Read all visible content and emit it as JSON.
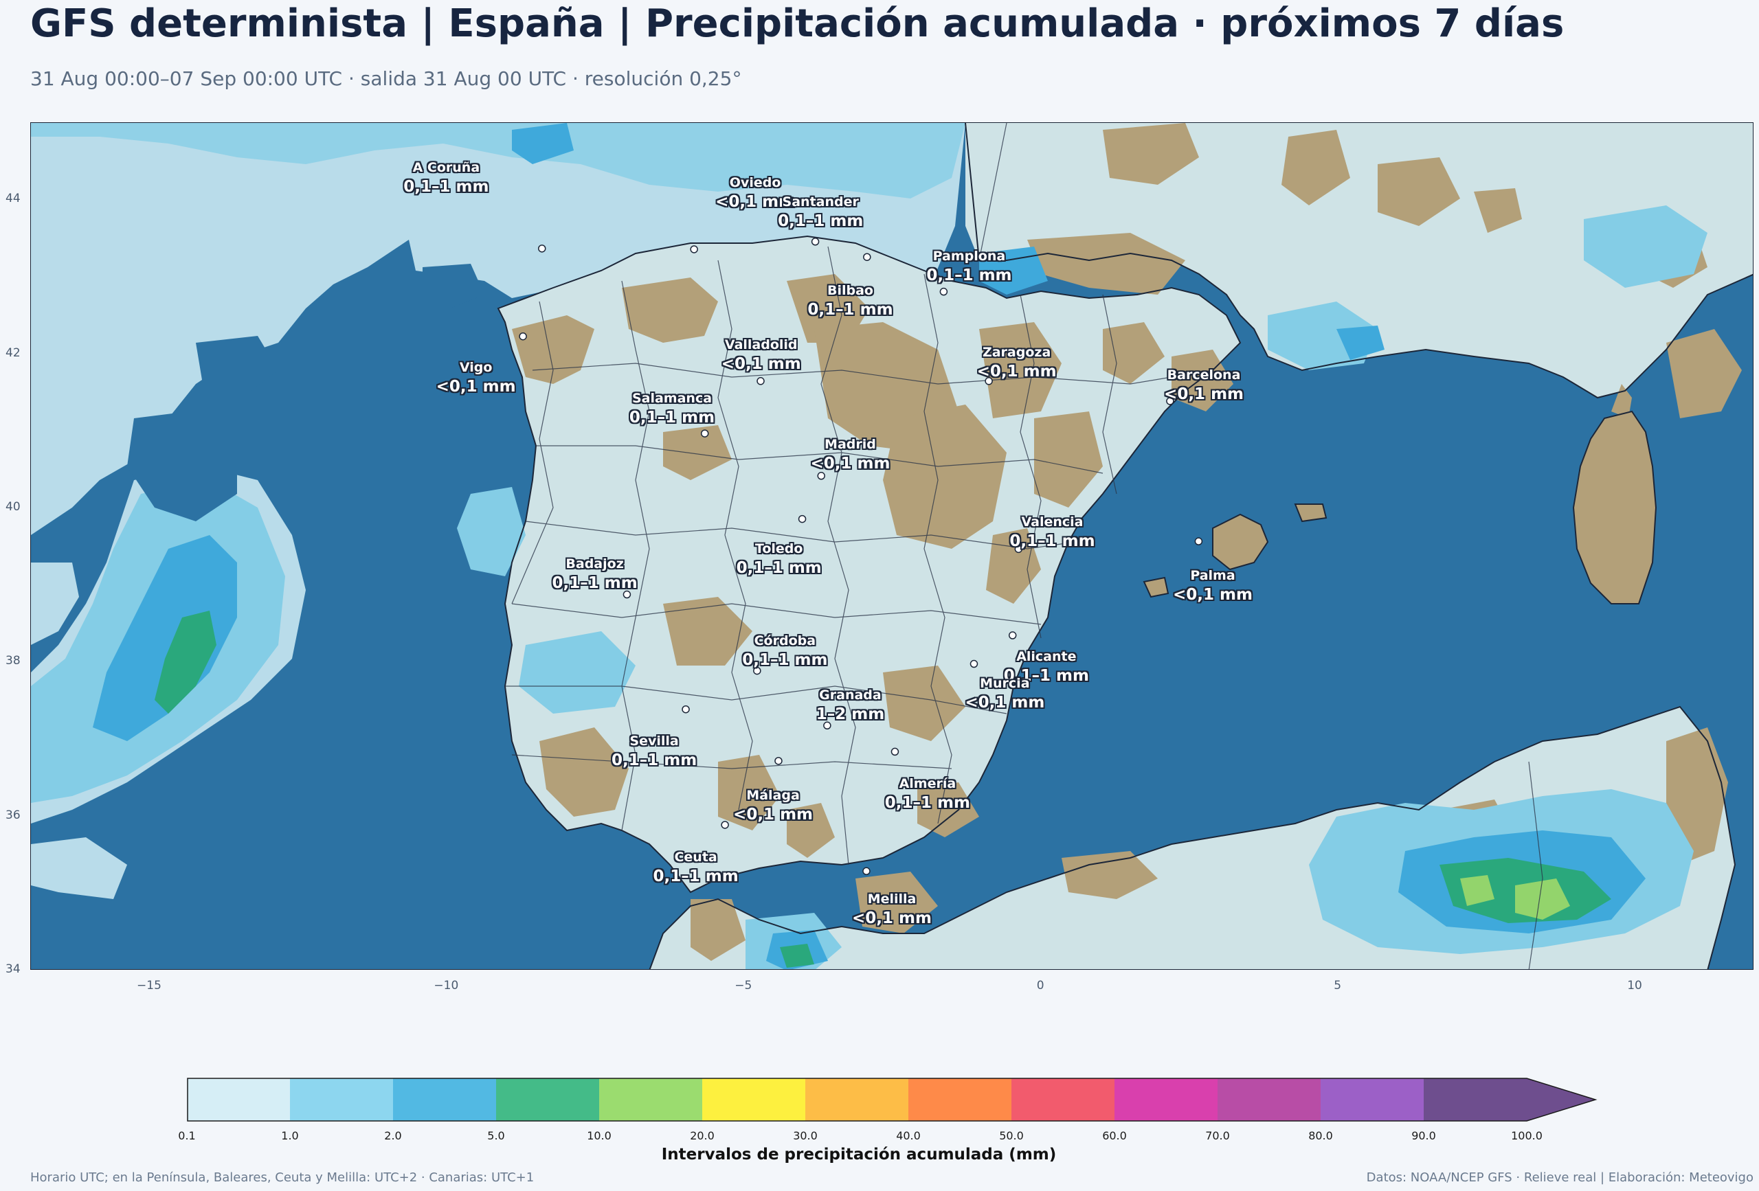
{
  "header": {
    "title": "GFS determinista | España | Precipitación acumulada · próximos 7 días",
    "subtitle": "31 Aug 00:00–07 Sep 00:00 UTC · salida 31 Aug 00 UTC · resolución 0,25°"
  },
  "map": {
    "lon_range": [
      -17,
      12
    ],
    "lat_range": [
      34,
      45
    ],
    "x_ticks": [
      -15,
      -10,
      -5,
      0,
      5,
      10
    ],
    "y_ticks": [
      34,
      36,
      38,
      40,
      42,
      44
    ],
    "x_tick_labels": [
      "−15",
      "−10",
      "−5",
      "0",
      "5",
      "10"
    ],
    "y_tick_labels": [
      "34",
      "36",
      "38",
      "40",
      "42",
      "44"
    ],
    "colors": {
      "sea_dry": "#2c72a3",
      "land_dry": "#b3a079",
      "band_0_1": "#cfe6ee",
      "band_1_2": "#84cde6",
      "band_2_5": "#3fa9db",
      "band_5_10": "#2aa87c",
      "band_10_20": "#93d46c"
    }
  },
  "cities": [
    {
      "name": "A Coruña",
      "value": "0,1–1 mm",
      "lon": -8.4,
      "lat": 43.37,
      "label_lon": -10.0,
      "label_lat": 44.3
    },
    {
      "name": "Oviedo",
      "value": "<0,1 mm",
      "lon": -5.84,
      "lat": 43.36,
      "label_lon": -4.8,
      "label_lat": 44.1
    },
    {
      "name": "Santander",
      "value": "0,1–1 mm",
      "lon": -3.8,
      "lat": 43.46,
      "label_lon": -3.7,
      "label_lat": 43.85
    },
    {
      "name": "Pamplona",
      "value": "0,1–1 mm",
      "lon": -1.64,
      "lat": 42.81,
      "label_lon": -1.2,
      "label_lat": 43.15
    },
    {
      "name": "Bilbao",
      "value": "0,1–1 mm",
      "lon": -2.93,
      "lat": 43.26,
      "label_lon": -3.2,
      "label_lat": 42.7
    },
    {
      "name": "Valladolid",
      "value": "<0,1 mm",
      "lon": -4.72,
      "lat": 41.65,
      "label_lon": -4.7,
      "label_lat": 42.0
    },
    {
      "name": "Vigo",
      "value": "<0,1 mm",
      "lon": -8.72,
      "lat": 42.23,
      "label_lon": -9.5,
      "label_lat": 41.7
    },
    {
      "name": "Zaragoza",
      "value": "<0,1 mm",
      "lon": -0.88,
      "lat": 41.65,
      "label_lon": -0.4,
      "label_lat": 41.9
    },
    {
      "name": "Barcelona",
      "value": "<0,1 mm",
      "lon": 2.17,
      "lat": 41.39,
      "label_lon": 2.75,
      "label_lat": 41.6
    },
    {
      "name": "Salamanca",
      "value": "0,1–1 mm",
      "lon": -5.66,
      "lat": 40.97,
      "label_lon": -6.2,
      "label_lat": 41.3
    },
    {
      "name": "Madrid",
      "value": "<0,1 mm",
      "lon": -3.7,
      "lat": 40.42,
      "label_lon": -3.2,
      "label_lat": 40.7
    },
    {
      "name": "Valencia",
      "value": "0,1–1 mm",
      "lon": -0.38,
      "lat": 39.47,
      "label_lon": 0.2,
      "label_lat": 39.7
    },
    {
      "name": "Toledo",
      "value": "0,1–1 mm",
      "lon": -4.02,
      "lat": 39.86,
      "label_lon": -4.4,
      "label_lat": 39.35
    },
    {
      "name": "Palma",
      "value": "<0,1 mm",
      "lon": 2.65,
      "lat": 39.57,
      "label_lon": 2.9,
      "label_lat": 39.0
    },
    {
      "name": "Badajoz",
      "value": "0,1–1 mm",
      "lon": -6.97,
      "lat": 38.88,
      "label_lon": -7.5,
      "label_lat": 39.15
    },
    {
      "name": "Córdoba",
      "value": "0,1–1 mm",
      "lon": -4.78,
      "lat": 37.89,
      "label_lon": -4.3,
      "label_lat": 38.15
    },
    {
      "name": "Alicante",
      "value": "0,1–1 mm",
      "lon": -0.48,
      "lat": 38.35,
      "label_lon": 0.1,
      "label_lat": 37.95
    },
    {
      "name": "Murcia",
      "value": "<0,1 mm",
      "lon": -1.13,
      "lat": 37.98,
      "label_lon": -0.6,
      "label_lat": 37.6
    },
    {
      "name": "Granada",
      "value": "1–2 mm",
      "lon": -3.6,
      "lat": 37.18,
      "label_lon": -3.2,
      "label_lat": 37.45
    },
    {
      "name": "Sevilla",
      "value": "0,1–1 mm",
      "lon": -5.98,
      "lat": 37.39,
      "label_lon": -6.5,
      "label_lat": 36.85
    },
    {
      "name": "Almería",
      "value": "0,1–1 mm",
      "lon": -2.46,
      "lat": 36.84,
      "label_lon": -1.9,
      "label_lat": 36.3
    },
    {
      "name": "Málaga",
      "value": "<0,1 mm",
      "lon": -4.42,
      "lat": 36.72,
      "label_lon": -4.5,
      "label_lat": 36.15
    },
    {
      "name": "Ceuta",
      "value": "0,1–1 mm",
      "lon": -5.32,
      "lat": 35.89,
      "label_lon": -5.8,
      "label_lat": 35.35
    },
    {
      "name": "Melilla",
      "value": "<0,1 mm",
      "lon": -2.94,
      "lat": 35.29,
      "label_lon": -2.5,
      "label_lat": 34.8
    }
  ],
  "legend": {
    "label": "Intervalos de precipitación acumulada (mm)",
    "ticks": [
      "0.1",
      "1.0",
      "2.0",
      "5.0",
      "10.0",
      "20.0",
      "30.0",
      "40.0",
      "50.0",
      "60.0",
      "70.0",
      "80.0",
      "90.0",
      "100.0"
    ],
    "colors": [
      "#d6eef6",
      "#8dd6ef",
      "#52b9e3",
      "#44bb88",
      "#9bdc6f",
      "#fdf03f",
      "#fdbd47",
      "#fe8a49",
      "#f25b6d",
      "#d940ad",
      "#b84da6",
      "#9c60c7",
      "#6e4e8e"
    ]
  },
  "footer": {
    "left": "Horario UTC; en la Península, Baleares, Ceuta y Melilla: UTC+2 · Canarias: UTC+1",
    "right": "Datos: NOAA/NCEP GFS · Relieve real | Elaboración: Meteovigo"
  }
}
